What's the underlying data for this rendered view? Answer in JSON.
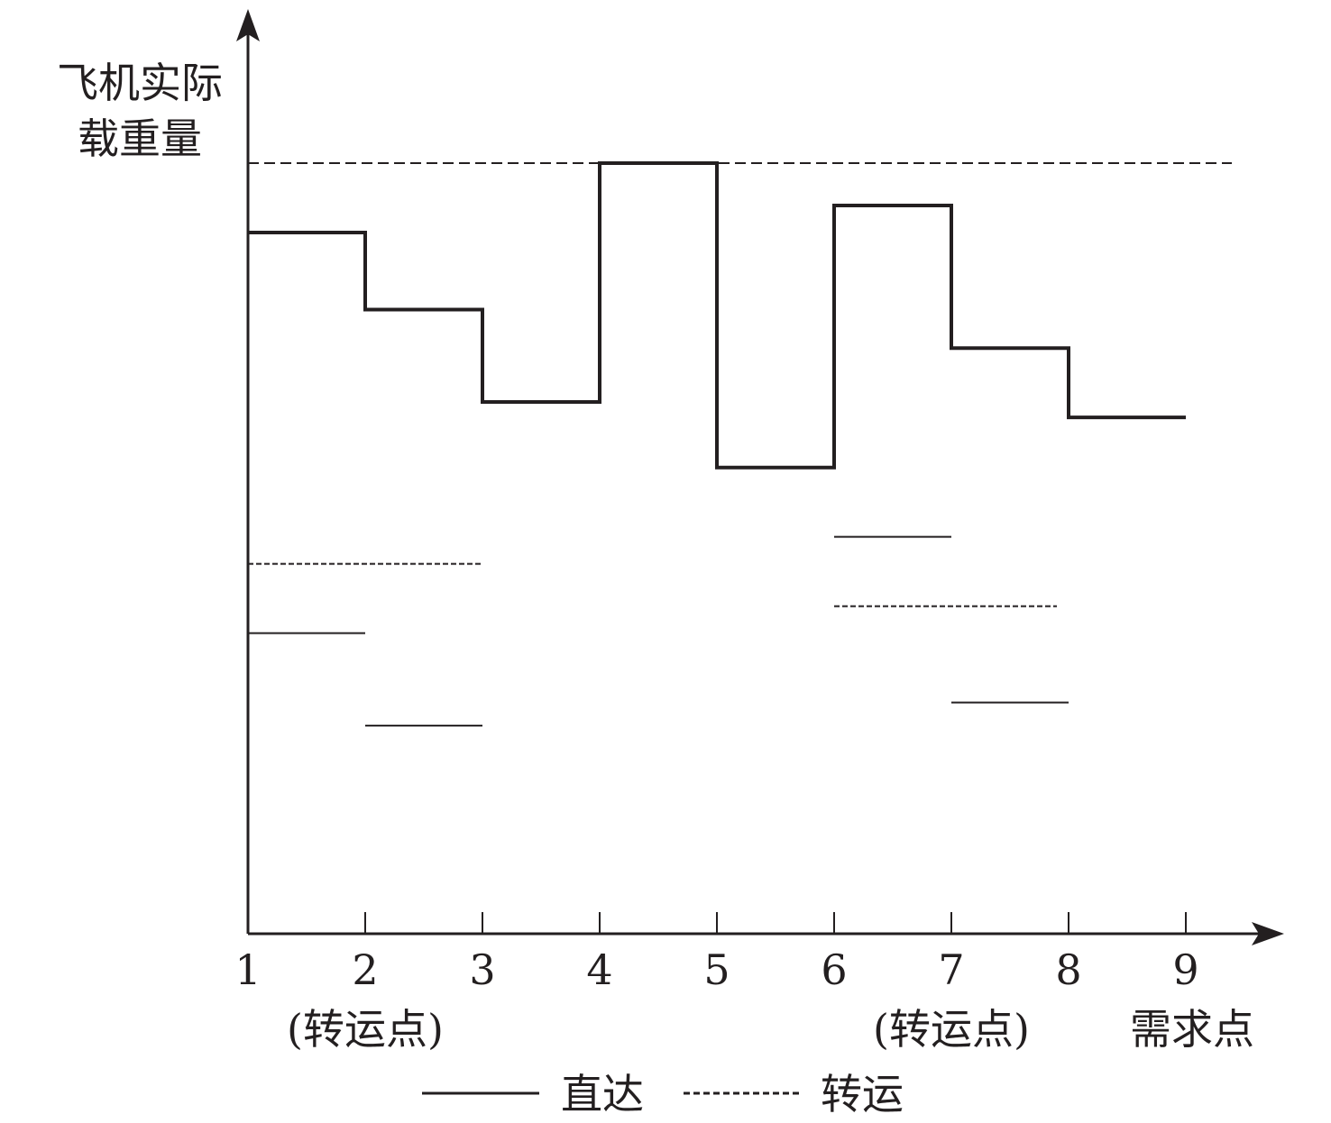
{
  "chart_data": {
    "type": "line",
    "title": "",
    "ylabel_lines": [
      "飞机实际",
      "载重量"
    ],
    "xlabel": "需求点",
    "x_ticks": [
      "1",
      "2",
      "3",
      "4",
      "5",
      "6",
      "7",
      "8",
      "9"
    ],
    "x_sublabels": [
      {
        "at": 2,
        "text": "(转运点)"
      },
      {
        "at": 7,
        "text": "(转运点)"
      }
    ],
    "xlim": [
      1,
      9
    ],
    "ylim": [
      0,
      100
    ],
    "capacity": 100,
    "grid": false,
    "legend_position": "bottom",
    "legend": [
      {
        "label": "直达",
        "style": "solid"
      },
      {
        "label": "转运",
        "style": "dashed"
      }
    ],
    "total_load": [
      {
        "x0": 1,
        "x1": 2,
        "y": 91
      },
      {
        "x0": 2,
        "x1": 3,
        "y": 81
      },
      {
        "x0": 3,
        "x1": 4,
        "y": 69
      },
      {
        "x0": 4,
        "x1": 5,
        "y": 100
      },
      {
        "x0": 5,
        "x1": 6,
        "y": 60.5
      },
      {
        "x0": 6,
        "x1": 7,
        "y": 94.5
      },
      {
        "x0": 7,
        "x1": 8,
        "y": 76
      },
      {
        "x0": 8,
        "x1": 9,
        "y": 67
      }
    ],
    "direct_segments": [
      {
        "x0": 1,
        "x1": 2,
        "y": 39
      },
      {
        "x0": 2,
        "x1": 3,
        "y": 27
      },
      {
        "x0": 6,
        "x1": 7,
        "y": 51.5
      },
      {
        "x0": 7,
        "x1": 8,
        "y": 30
      }
    ],
    "transfer_segments": [
      {
        "x0": 1,
        "x1": 3,
        "y": 48
      },
      {
        "x0": 6,
        "x1": 7.9,
        "y": 42.5
      }
    ]
  }
}
